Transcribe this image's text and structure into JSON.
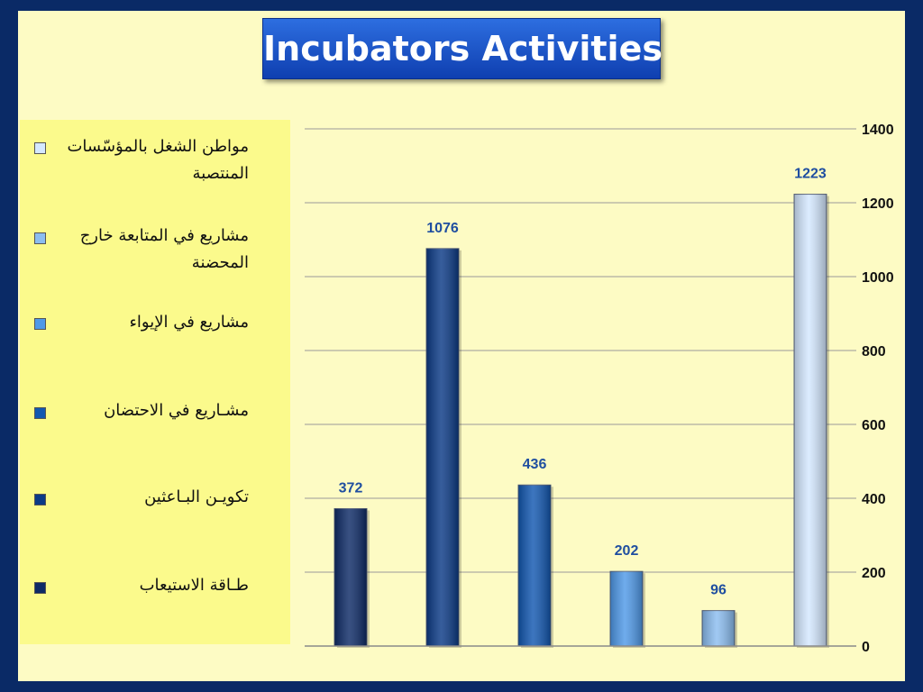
{
  "title": "Incubators Activities",
  "chart_data": {
    "type": "bar",
    "title": "Incubators Activities",
    "categories": [
      "طـاقة الاستيعاب",
      "تكويـن البـاعثين",
      "مشـاريع  في الاحتضان",
      "مشاريع  في الإيواء",
      "مشاريع في المتابعة خارج المحضنة",
      "مواطن الشغل بالمؤسّسات المنتصبة"
    ],
    "values": [
      372,
      1076,
      436,
      202,
      96,
      1223
    ],
    "colors": [
      "#0d2a66",
      "#0b3a86",
      "#1257b0",
      "#4f99e8",
      "#8bbdf0",
      "#d4e8ff"
    ],
    "ylim": [
      0,
      1400
    ],
    "yticks": [
      0,
      200,
      400,
      600,
      800,
      1000,
      1200,
      1400
    ],
    "grid": true,
    "legend": "left"
  },
  "legend_items": [
    {
      "label": "مواطن الشغل بالمؤسّسات المنتصبة",
      "color": "#d4e8ff"
    },
    {
      "label": "مشاريع في المتابعة خارج المحضنة",
      "color": "#8bbdf0"
    },
    {
      "label": "مشاريع  في الإيواء",
      "color": "#4f99e8"
    },
    {
      "label": "مشـاريع  في الاحتضان",
      "color": "#1257b0"
    },
    {
      "label": "تكويـن البـاعثين",
      "color": "#0b3a86"
    },
    {
      "label": "طـاقة الاستيعاب",
      "color": "#0d2a66"
    }
  ]
}
